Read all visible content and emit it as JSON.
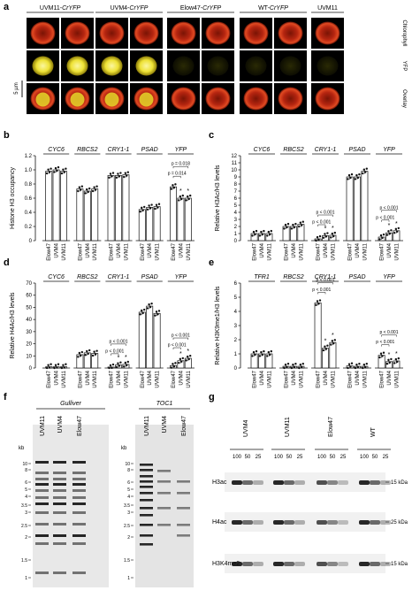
{
  "panel_a": {
    "label": "a",
    "strains": [
      "UVM11-CrYFP",
      "UVM4-CrYFP",
      "Elow47-CrYFP",
      "WT-CrYFP",
      "UVM11"
    ],
    "rows": [
      "Chlorophyll",
      "YFP",
      "Overlay"
    ],
    "scale_bar": "5 µm"
  },
  "panel_labels": {
    "b": "b",
    "c": "c",
    "d": "d",
    "e": "e",
    "f": "f",
    "g": "g"
  },
  "charts": [
    {
      "type": "bar",
      "label": "b",
      "ylabel": "Histone H3 occupancy",
      "ylim": [
        0,
        1.2
      ],
      "yticks": [
        "0",
        "0.2",
        "0.4",
        "0.6",
        "0.8",
        "1.0",
        "1.2"
      ],
      "genes": [
        "CYC6",
        "RBCS2",
        "CRY1-1",
        "PSAD",
        "YFP"
      ],
      "strains": [
        "Elow47",
        "UVM4",
        "UVM11"
      ],
      "values": [
        [
          0.98,
          1.0,
          0.98
        ],
        [
          0.73,
          0.7,
          0.73
        ],
        [
          0.92,
          0.92,
          0.93
        ],
        [
          0.44,
          0.47,
          0.48
        ],
        [
          0.76,
          0.6,
          0.6
        ]
      ],
      "pvalues": [
        "p = 0.014",
        "p = 0.018"
      ]
    },
    {
      "type": "bar",
      "label": "c",
      "ylabel": "Relative H3Ac/H3 levels",
      "ylim": [
        0,
        12
      ],
      "yticks": [
        "0",
        "1",
        "2",
        "3",
        "4",
        "5",
        "6",
        "7",
        "8",
        "9",
        "10",
        "11",
        "12"
      ],
      "genes": [
        "CYC6",
        "RBCS2",
        "CRY1-1",
        "PSAD",
        "YFP"
      ],
      "strains": [
        "Elow47",
        "UVM4",
        "UVM11"
      ],
      "values": [
        [
          1.0,
          1.0,
          1.0
        ],
        [
          2.0,
          2.0,
          2.3
        ],
        [
          0.25,
          0.7,
          0.75
        ],
        [
          9.0,
          9.0,
          9.8
        ],
        [
          0.5,
          1.1,
          1.4
        ]
      ],
      "pvalues": [
        "p < 0.001",
        "p < 0.001",
        "p < 0.001",
        "p < 0.001"
      ]
    },
    {
      "type": "bar",
      "label": "d",
      "ylabel": "Relative H4Ac/H3 levels",
      "ylim": [
        0,
        70
      ],
      "yticks": [
        "0",
        "10",
        "20",
        "30",
        "40",
        "50",
        "60",
        "70"
      ],
      "genes": [
        "CYC6",
        "RBCS2",
        "CRY1-1",
        "PSAD",
        "YFP"
      ],
      "strains": [
        "Elow47",
        "UVM4",
        "UVM11"
      ],
      "values": [
        [
          1.0,
          1.0,
          1.0
        ],
        [
          11.0,
          12.5,
          12.0
        ],
        [
          0.8,
          2.5,
          3.0
        ],
        [
          46.0,
          51.0,
          45.0
        ],
        [
          2.0,
          6.0,
          8.0
        ]
      ],
      "pvalues": [
        "p < 0.001",
        "p < 0.001",
        "p < 0.001",
        "p < 0.001"
      ]
    },
    {
      "type": "bar",
      "label": "e",
      "ylabel": "Relative H3K9me1/H3 levels",
      "ylim": [
        0,
        6
      ],
      "yticks": [
        "0",
        "1",
        "2",
        "3",
        "4",
        "5",
        "6"
      ],
      "genes": [
        "TFR1",
        "RBCS2",
        "CRY1-1",
        "PSAD",
        "YFP"
      ],
      "strains": [
        "Elow47",
        "UVM4",
        "UVM11"
      ],
      "values": [
        [
          1.0,
          1.0,
          1.0
        ],
        [
          0.12,
          0.12,
          0.12
        ],
        [
          4.6,
          1.4,
          1.8
        ],
        [
          0.15,
          0.12,
          0.12
        ],
        [
          0.9,
          0.45,
          0.5
        ]
      ],
      "pvalues": [
        "p < 0.001",
        "p < 0.001",
        "p < 0.001",
        "p < 0.001"
      ]
    }
  ],
  "panel_f": {
    "label": "f",
    "blot1": {
      "title": "Gulliver",
      "lanes": [
        "UVM11",
        "UVM4",
        "Elow47"
      ]
    },
    "blot2": {
      "title": "TOC1",
      "lanes": [
        "UVM11",
        "UVM4",
        "Elow47"
      ]
    },
    "kb_label": "kb",
    "kb_ticks": [
      "10",
      "8",
      "6",
      "5",
      "4",
      "3.5",
      "3",
      "2.5",
      "2",
      "1.5",
      "1"
    ]
  },
  "panel_g": {
    "label": "g",
    "strains": [
      "UVM4",
      "UVM11",
      "Elow47",
      "WT"
    ],
    "loads": [
      "100",
      "50",
      "25"
    ],
    "rows": [
      "H3ac",
      "H4ac",
      "H3K4me2"
    ],
    "markers": [
      "15 kDa",
      "25 kDa",
      "15 kDa"
    ]
  },
  "colors": {
    "bar": "#ffffff",
    "dot": "#111111",
    "cell_red": "#d83a1e",
    "yfp": "#e8e020"
  }
}
